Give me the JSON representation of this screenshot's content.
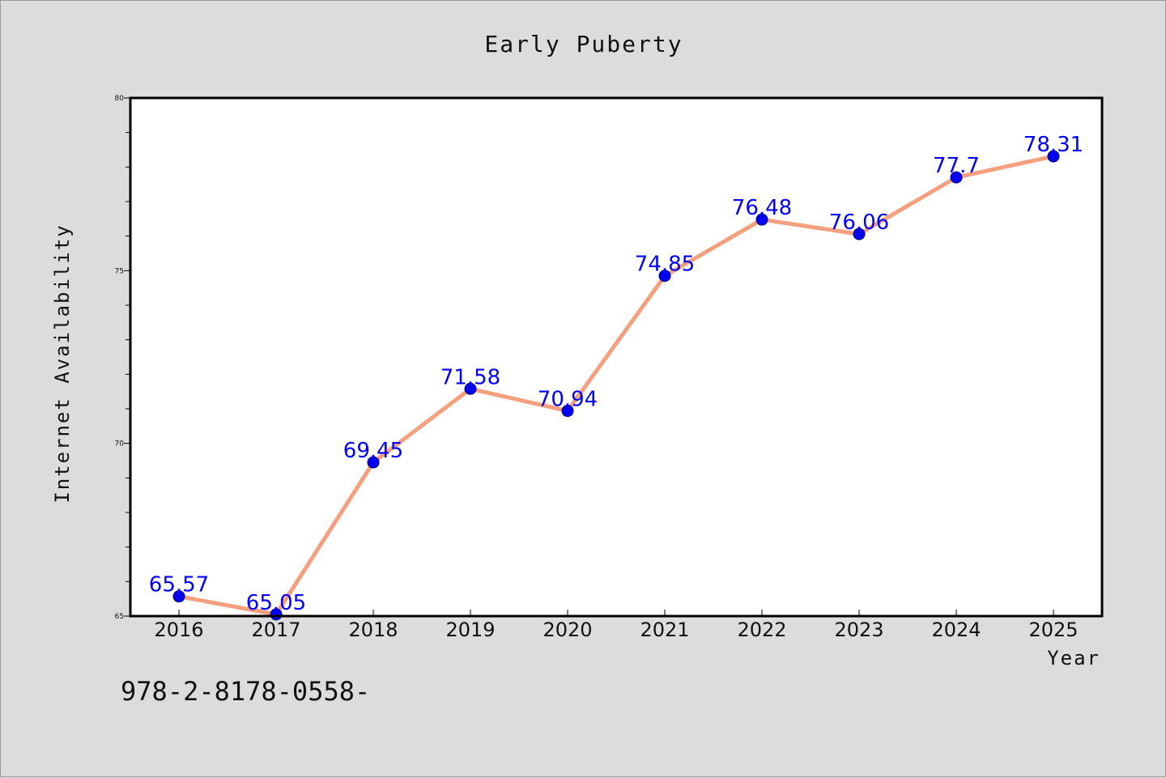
{
  "chart_data": {
    "type": "line",
    "title": "Early Puberty",
    "xlabel": "Year",
    "ylabel": "Internet Availability",
    "x": [
      "2016",
      "2017",
      "2018",
      "2019",
      "2020",
      "2021",
      "2022",
      "2023",
      "2024",
      "2025"
    ],
    "series": [
      {
        "values": [
          65.57,
          65.05,
          69.45,
          71.58,
          70.94,
          74.85,
          76.48,
          76.06,
          77.7,
          78.31
        ],
        "labels": [
          "65.57",
          "65.05",
          "69.45",
          "71.58",
          "70.94",
          "74.85",
          "76.48",
          "76.06",
          "77.7",
          "78.31"
        ]
      }
    ],
    "ylim": [
      65,
      80
    ],
    "yticks": [
      "65",
      "70",
      "75",
      "80"
    ],
    "grid": false,
    "legend": "none",
    "colors": {
      "line": "#f4a07f",
      "marker": "#0000ee",
      "data_label": "#0000ff",
      "plot_background": "#ffffff",
      "figure_background": "#dcdcdc"
    }
  },
  "footer": {
    "text": "978-2-8178-0558-"
  }
}
